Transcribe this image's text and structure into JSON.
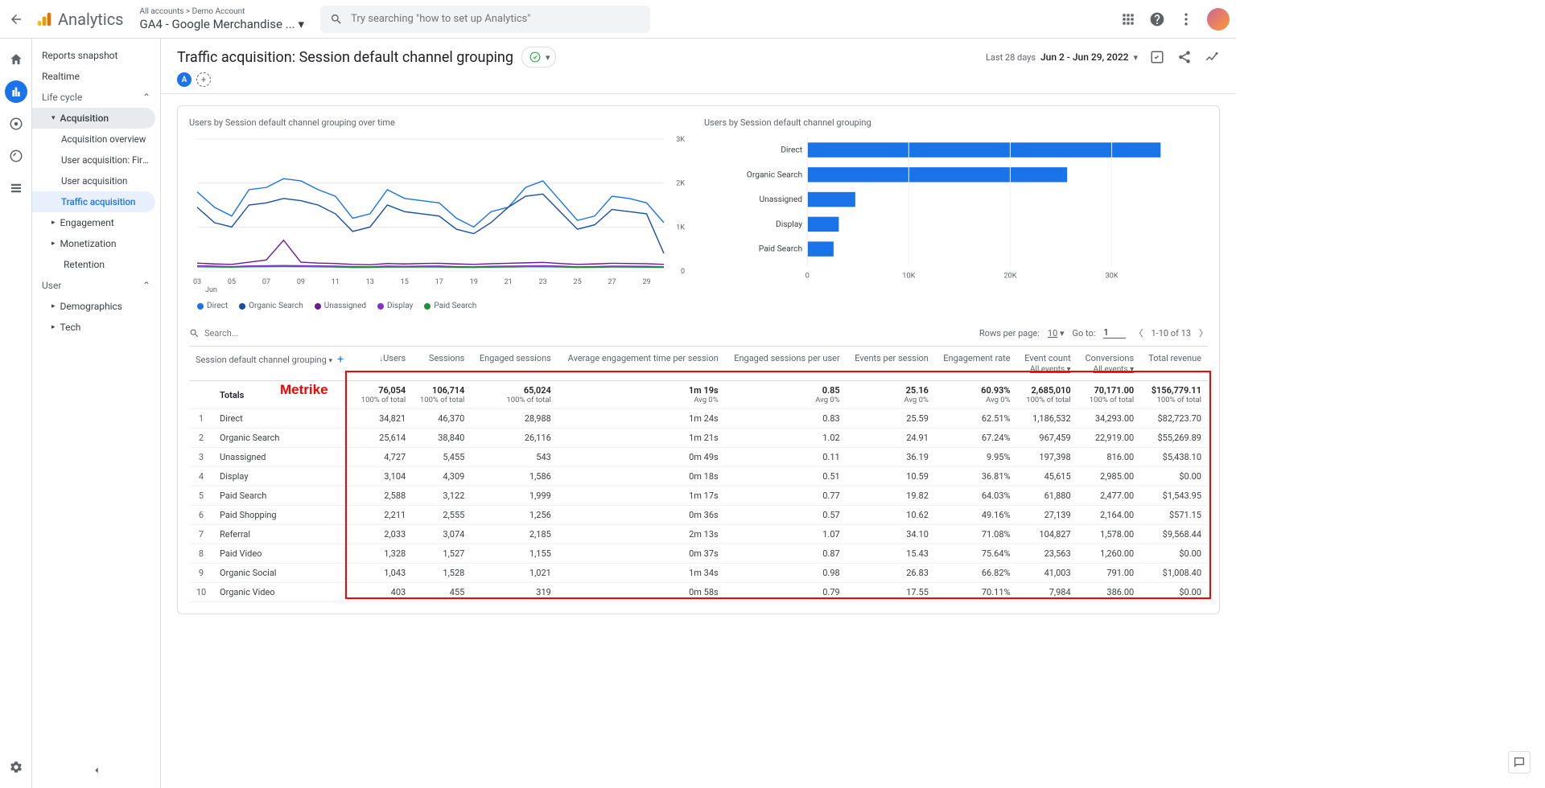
{
  "top": {
    "analytics_label": "Analytics",
    "account_path": "All accounts > Demo Account",
    "property_name": "GA4 - Google Merchandise ...",
    "search_placeholder": "Try searching \"how to set up Analytics\""
  },
  "sidebar": {
    "reports_snapshot": "Reports snapshot",
    "realtime": "Realtime",
    "life_cycle": "Life cycle",
    "acquisition": "Acquisition",
    "acquisition_overview": "Acquisition overview",
    "user_acquisition_first": "User acquisition: First user ...",
    "user_acquisition": "User acquisition",
    "traffic_acquisition": "Traffic acquisition",
    "engagement": "Engagement",
    "monetization": "Monetization",
    "retention": "Retention",
    "user": "User",
    "demographics": "Demographics",
    "tech": "Tech"
  },
  "header": {
    "title": "Traffic acquisition: Session default channel grouping",
    "last_label": "Last 28 days",
    "date_range": "Jun 2 - Jun 29, 2022"
  },
  "compare_badge": "A",
  "line_chart": {
    "title": "Users by Session default channel grouping over time",
    "y_ticks": [
      "3K",
      "2K",
      "1K",
      "0"
    ],
    "x_ticks": [
      "03",
      "05",
      "07",
      "09",
      "11",
      "13",
      "15",
      "17",
      "19",
      "21",
      "23",
      "25",
      "27",
      "29"
    ],
    "x_month": "Jun",
    "legend": [
      {
        "label": "Direct",
        "color": "#1a73e8"
      },
      {
        "label": "Organic Search",
        "color": "#174ea6"
      },
      {
        "label": "Unassigned",
        "color": "#6a1b9a"
      },
      {
        "label": "Display",
        "color": "#8430ce"
      },
      {
        "label": "Paid Search",
        "color": "#1e8e3e"
      }
    ],
    "series": {
      "direct": {
        "color": "#1a73e8",
        "values": [
          1800,
          1450,
          1250,
          1850,
          1900,
          2100,
          2050,
          1850,
          1700,
          1200,
          1300,
          1850,
          1650,
          1600,
          1550,
          1200,
          1000,
          1350,
          1450,
          1900,
          2050,
          1600,
          1150,
          1250,
          1700,
          1650,
          1550,
          1100
        ]
      },
      "organic_search": {
        "color": "#174ea6",
        "values": [
          1450,
          1100,
          1000,
          1500,
          1550,
          1650,
          1600,
          1500,
          1300,
          900,
          1000,
          1500,
          1350,
          1300,
          1250,
          950,
          850,
          1100,
          1450,
          1700,
          1750,
          1350,
          950,
          1050,
          1400,
          1350,
          1300,
          400
        ]
      },
      "unassigned": {
        "color": "#6a1b9a",
        "values": [
          180,
          160,
          150,
          200,
          250,
          700,
          200,
          180,
          170,
          150,
          140,
          170,
          160,
          170,
          175,
          160,
          150,
          165,
          175,
          185,
          195,
          170,
          150,
          160,
          175,
          170,
          165,
          150
        ]
      },
      "display": {
        "color": "#8430ce",
        "values": [
          120,
          110,
          100,
          115,
          120,
          125,
          120,
          115,
          110,
          100,
          95,
          110,
          105,
          110,
          112,
          100,
          95,
          105,
          110,
          115,
          120,
          110,
          95,
          100,
          110,
          108,
          105,
          95
        ]
      },
      "paid_search": {
        "color": "#1e8e3e",
        "values": [
          95,
          90,
          85,
          95,
          98,
          100,
          98,
          95,
          90,
          80,
          78,
          90,
          88,
          90,
          91,
          82,
          78,
          86,
          90,
          94,
          98,
          90,
          78,
          82,
          90,
          88,
          86,
          80
        ]
      }
    }
  },
  "bar_chart": {
    "title": "Users by Session default channel grouping",
    "x_ticks": [
      "0",
      "10K",
      "20K",
      "30K"
    ],
    "bars": [
      {
        "label": "Direct",
        "value": 34821,
        "color": "#1a73e8"
      },
      {
        "label": "Organic Search",
        "value": 25614,
        "color": "#1a73e8"
      },
      {
        "label": "Unassigned",
        "value": 4727,
        "color": "#1a73e8"
      },
      {
        "label": "Display",
        "value": 3104,
        "color": "#1a73e8"
      },
      {
        "label": "Paid Search",
        "value": 2588,
        "color": "#1a73e8"
      }
    ],
    "xmax": 35000
  },
  "table_controls": {
    "search_placeholder": "Search...",
    "rows_per_page_label": "Rows per page:",
    "rows_per_page_value": "10",
    "goto_label": "Go to:",
    "goto_value": "1",
    "range_label": "1-10 of 13"
  },
  "table": {
    "dim_header": "Session default channel grouping",
    "columns": [
      "Users",
      "Sessions",
      "Engaged sessions",
      "Average engagement time per session",
      "Engaged sessions per user",
      "Events per session",
      "Engagement rate",
      "Event count",
      "Conversions",
      "Total revenue"
    ],
    "sub_all": "All events",
    "totals_label": "Totals",
    "totals": {
      "values": [
        "76,054",
        "106,714",
        "65,024",
        "1m 19s",
        "0.85",
        "25.16",
        "60.93%",
        "2,685,010",
        "70,171.00",
        "$156,779.11"
      ],
      "subs": [
        "100% of total",
        "100% of total",
        "100% of total",
        "Avg 0%",
        "Avg 0%",
        "Avg 0%",
        "Avg 0%",
        "100% of total",
        "100% of total",
        "100% of total"
      ]
    },
    "rows": [
      {
        "n": "1",
        "dim": "Direct",
        "v": [
          "34,821",
          "46,370",
          "28,988",
          "1m 24s",
          "0.83",
          "25.59",
          "62.51%",
          "1,186,532",
          "34,293.00",
          "$82,723.70"
        ]
      },
      {
        "n": "2",
        "dim": "Organic Search",
        "v": [
          "25,614",
          "38,840",
          "26,116",
          "1m 21s",
          "1.02",
          "24.91",
          "67.24%",
          "967,459",
          "22,919.00",
          "$55,269.89"
        ]
      },
      {
        "n": "3",
        "dim": "Unassigned",
        "v": [
          "4,727",
          "5,455",
          "543",
          "0m 49s",
          "0.11",
          "36.19",
          "9.95%",
          "197,398",
          "816.00",
          "$5,438.10"
        ]
      },
      {
        "n": "4",
        "dim": "Display",
        "v": [
          "3,104",
          "4,309",
          "1,586",
          "0m 18s",
          "0.51",
          "10.59",
          "36.81%",
          "45,615",
          "2,985.00",
          "$0.00"
        ]
      },
      {
        "n": "5",
        "dim": "Paid Search",
        "v": [
          "2,588",
          "3,122",
          "1,999",
          "1m 17s",
          "0.77",
          "19.82",
          "64.03%",
          "61,880",
          "2,477.00",
          "$1,543.95"
        ]
      },
      {
        "n": "6",
        "dim": "Paid Shopping",
        "v": [
          "2,211",
          "2,555",
          "1,256",
          "0m 36s",
          "0.57",
          "10.62",
          "49.16%",
          "27,139",
          "2,164.00",
          "$571.15"
        ]
      },
      {
        "n": "7",
        "dim": "Referral",
        "v": [
          "2,033",
          "3,074",
          "2,185",
          "2m 13s",
          "1.07",
          "34.10",
          "71.08%",
          "104,827",
          "1,578.00",
          "$9,568.44"
        ]
      },
      {
        "n": "8",
        "dim": "Paid Video",
        "v": [
          "1,328",
          "1,527",
          "1,155",
          "0m 37s",
          "0.87",
          "15.43",
          "75.64%",
          "23,563",
          "1,260.00",
          "$0.00"
        ]
      },
      {
        "n": "9",
        "dim": "Organic Social",
        "v": [
          "1,043",
          "1,528",
          "1,021",
          "1m 34s",
          "0.98",
          "26.83",
          "66.82%",
          "41,003",
          "791.00",
          "$1,008.40"
        ]
      },
      {
        "n": "10",
        "dim": "Organic Video",
        "v": [
          "403",
          "455",
          "319",
          "0m 58s",
          "0.79",
          "17.55",
          "70.11%",
          "7,984",
          "386.00",
          "$0.00"
        ]
      }
    ]
  },
  "annotation_label": "Metrike"
}
